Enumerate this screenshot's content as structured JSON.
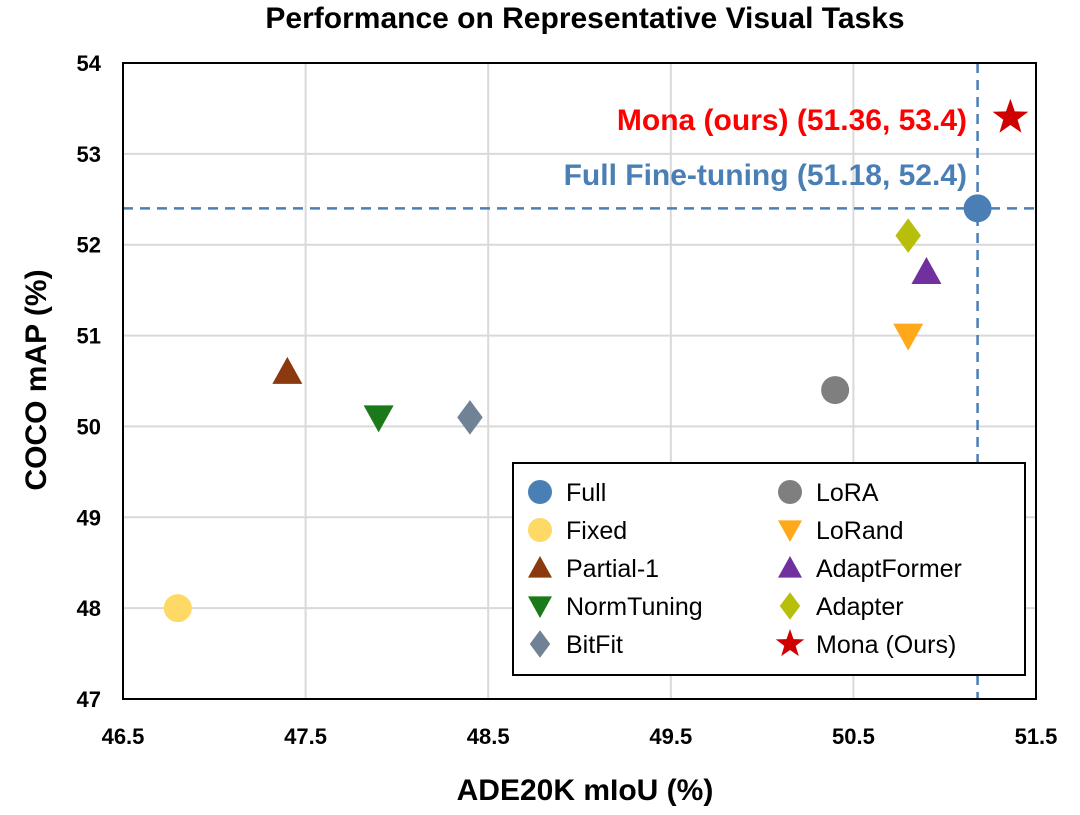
{
  "chart_data": {
    "type": "scatter",
    "title": "Performance on Representative Visual Tasks",
    "xlabel": "ADE20K mIoU (%)",
    "ylabel": "COCO mAP (%)",
    "xlim": [
      46.5,
      51.5
    ],
    "ylim": [
      47,
      54
    ],
    "xticks": [
      "46.5",
      "47.5",
      "48.5",
      "49.5",
      "50.5",
      "51.5"
    ],
    "yticks": [
      "47",
      "48",
      "49",
      "50",
      "51",
      "52",
      "53",
      "54"
    ],
    "grid": true,
    "legend_position": "lower-right",
    "series": [
      {
        "name": "Full",
        "marker": "circle",
        "color": "#4a7fb5",
        "x": 51.18,
        "y": 52.4
      },
      {
        "name": "Fixed",
        "marker": "circle",
        "color": "#ffd966",
        "x": 46.8,
        "y": 48.0
      },
      {
        "name": "Partial-1",
        "marker": "triangle-up",
        "color": "#8b3a0f",
        "x": 47.4,
        "y": 50.6
      },
      {
        "name": "NormTuning",
        "marker": "triangle-down",
        "color": "#1a7a1a",
        "x": 47.9,
        "y": 50.1
      },
      {
        "name": "BitFit",
        "marker": "diamond",
        "color": "#6f8296",
        "x": 48.4,
        "y": 50.1
      },
      {
        "name": "LoRA",
        "marker": "circle",
        "color": "#7f7f7f",
        "x": 50.4,
        "y": 50.4
      },
      {
        "name": "LoRand",
        "marker": "triangle-down",
        "color": "#ffa81a",
        "x": 50.8,
        "y": 51.0
      },
      {
        "name": "AdaptFormer",
        "marker": "triangle-up",
        "color": "#7030a0",
        "x": 50.9,
        "y": 51.7
      },
      {
        "name": "Adapter",
        "marker": "diamond",
        "color": "#b8bf0a",
        "x": 50.8,
        "y": 52.1
      },
      {
        "name": "Mona (Ours)",
        "marker": "star",
        "color": "#d00000",
        "x": 51.36,
        "y": 53.4,
        "label_color": "#d00000"
      }
    ],
    "reference_lines": {
      "x": 51.18,
      "y": 52.4,
      "style": "dashed",
      "color": "#4a7fb5"
    },
    "annotations": [
      {
        "text": "Mona (ours) (51.36, 53.4)",
        "color": "#ff0000"
      },
      {
        "text": "Full Fine-tuning (51.18, 52.4)",
        "color": "#4a7fb5"
      }
    ]
  }
}
